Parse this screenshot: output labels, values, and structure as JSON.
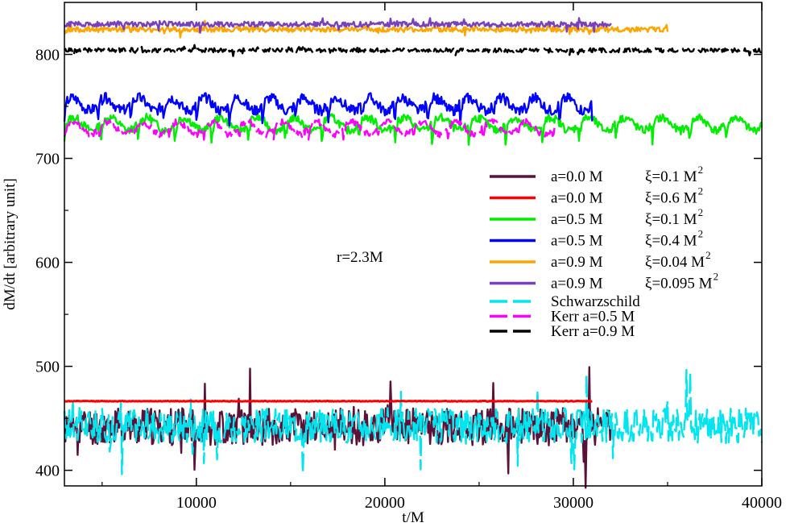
{
  "chart_data": {
    "type": "line",
    "title": "",
    "xlabel": "t/M",
    "ylabel": "dM/dt [arbitrary unit]",
    "xlim": [
      3000,
      40000
    ],
    "ylim": [
      385,
      850
    ],
    "xticks": [
      10000,
      20000,
      30000,
      40000
    ],
    "yticks": [
      400,
      500,
      600,
      700,
      800
    ],
    "xtick_labels": [
      "10000",
      "20000",
      "30000",
      "40000"
    ],
    "ytick_labels": [
      "400",
      "500",
      "600",
      "700",
      "800"
    ],
    "grid": false,
    "legend_position": "right",
    "annotation": "r=2.3M",
    "series": [
      {
        "label_a": "a=0.0 M",
        "label_xi": "ξ=0.1 M",
        "color": "#5c1238",
        "dash": "solid",
        "behavior": "noisy",
        "t_start": 3000,
        "t_end": 32000,
        "mean": 442,
        "amp": 18,
        "dips": [],
        "period": 0,
        "seed": 11
      },
      {
        "label_a": "a=0.0 M",
        "label_xi": "ξ=0.6 M",
        "color": "#ff0000",
        "dash": "solid",
        "behavior": "flat",
        "t_start": 3000,
        "t_end": 31000,
        "mean": 466.5,
        "amp": 0.6,
        "dips": [],
        "period": 0,
        "seed": 12
      },
      {
        "label_a": "a=0.5 M",
        "label_xi": "ξ=0.1 M",
        "color": "#00ee00",
        "dash": "solid",
        "behavior": "periodic",
        "t_start": 3000,
        "t_end": 40000,
        "mean": 733,
        "amp": 4,
        "dips": [
          18
        ],
        "period": 1950,
        "seed": 13
      },
      {
        "label_a": "a=0.5 M",
        "label_xi": "ξ=0.4  M",
        "color": "#0000ff",
        "dash": "solid",
        "behavior": "periodic",
        "t_start": 3000,
        "t_end": 31000,
        "mean": 752,
        "amp": 5,
        "dips": [
          18
        ],
        "period": 1750,
        "seed": 14
      },
      {
        "label_a": "a=0.9 M",
        "label_xi": "ξ=0.04 M",
        "color": "#ffa500",
        "dash": "solid",
        "behavior": "noisy",
        "t_start": 3000,
        "t_end": 35000,
        "mean": 824,
        "amp": 2.5,
        "dips": [],
        "period": 0,
        "seed": 15
      },
      {
        "label_a": "a=0.9 M",
        "label_xi": "ξ=0.095 M",
        "color": "#7a3fbf",
        "dash": "solid",
        "behavior": "noisy",
        "t_start": 3000,
        "t_end": 32000,
        "mean": 829,
        "amp": 2.5,
        "dips": [],
        "period": 0,
        "seed": 16
      },
      {
        "label_a": "Schwarzschild",
        "label_xi": "",
        "color": "#00e5ee",
        "dash": "dashed",
        "behavior": "noisy",
        "t_start": 3000,
        "t_end": 40000,
        "mean": 443,
        "amp": 17,
        "dips": [],
        "period": 0,
        "seed": 17
      },
      {
        "label_a": "Kerr a=0.5 M",
        "label_xi": "",
        "color": "#ff00ff",
        "dash": "dashed",
        "behavior": "periodic",
        "t_start": 3000,
        "t_end": 29000,
        "mean": 729,
        "amp": 3,
        "dips": [
          10
        ],
        "period": 1850,
        "seed": 18
      },
      {
        "label_a": "Kerr a=0.9 M",
        "label_xi": "",
        "color": "#000000",
        "dash": "dashed",
        "behavior": "noisy",
        "t_start": 3000,
        "t_end": 40000,
        "mean": 804,
        "amp": 2,
        "dips": [],
        "period": 0,
        "seed": 19
      }
    ]
  }
}
